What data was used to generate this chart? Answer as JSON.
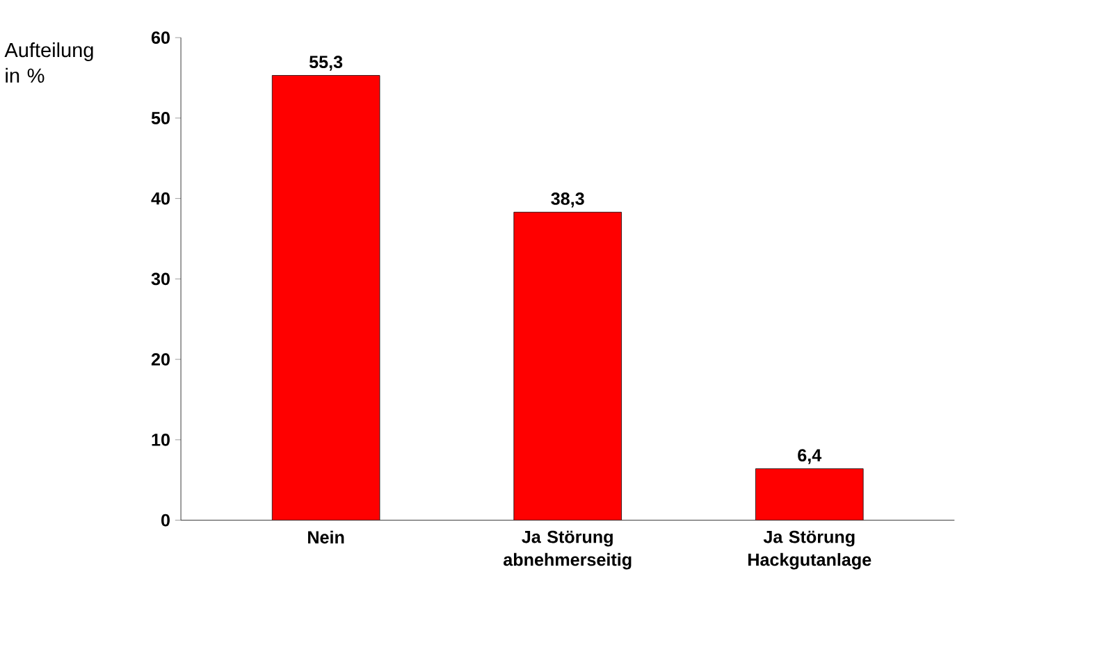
{
  "chart_data": {
    "type": "bar",
    "ylabel": "Aufteilung in %",
    "categories": [
      "Nein",
      "Ja Störung abnehmerseitig",
      "Ja Störung Hackgutanlage"
    ],
    "values": [
      55.3,
      38.3,
      6.4
    ],
    "value_labels": [
      "55,3",
      "38,3",
      "6,4"
    ],
    "color": "#ff0000",
    "ylim": [
      0,
      60
    ],
    "yticks": [
      0,
      10,
      20,
      30,
      40,
      50,
      60
    ]
  }
}
